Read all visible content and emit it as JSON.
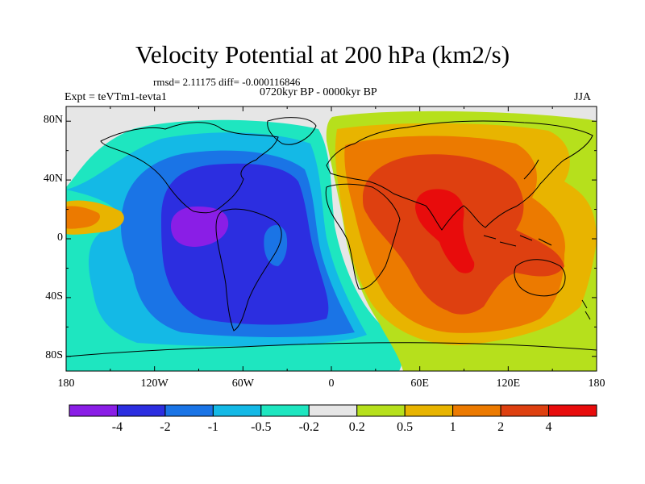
{
  "title": "Velocity Potential at 200 hPa (km2/s)",
  "stats_line": "rmsd= 2.11175 diff= -0.000116846",
  "period": "0720kyr BP - 0000kyr BP",
  "experiment": "Expt = teVTm1-tevta1",
  "season": "JJA",
  "lat_labels": [
    "80N",
    "40N",
    "0",
    "40S",
    "80S"
  ],
  "lat_values": [
    80,
    40,
    0,
    -40,
    -80
  ],
  "lon_labels": [
    "180",
    "120W",
    "60W",
    "0",
    "60E",
    "120E",
    "180"
  ],
  "lon_values": [
    -180,
    -120,
    -60,
    0,
    60,
    120,
    180
  ],
  "colorbar": {
    "levels": [
      "-4",
      "-2",
      "-1",
      "-0.5",
      "-0.2",
      "0.2",
      "0.5",
      "1",
      "2",
      "4"
    ],
    "colors": [
      "#8a1ee6",
      "#2c2ee0",
      "#1a74e6",
      "#14b9e6",
      "#1ee6c0",
      "#e6e6e6",
      "#b6e01c",
      "#e8b400",
      "#ec7a00",
      "#de4010",
      "#e80c0c"
    ]
  },
  "field_bins": {
    "anticyclone_center": "#e80c0c",
    "anticyclone_inner": "#de4010",
    "anticyclone_mid": "#ec7a00",
    "anticyclone_outer": "#e8b400",
    "anticyclone_edge": "#b6e01c",
    "neutral": "#e6e6e6",
    "cyclone_edge": "#1ee6c0",
    "cyclone_outer": "#14b9e6",
    "cyclone_mid": "#1a74e6",
    "cyclone_inner": "#2c2ee0",
    "cyclone_center": "#8a1ee6"
  }
}
